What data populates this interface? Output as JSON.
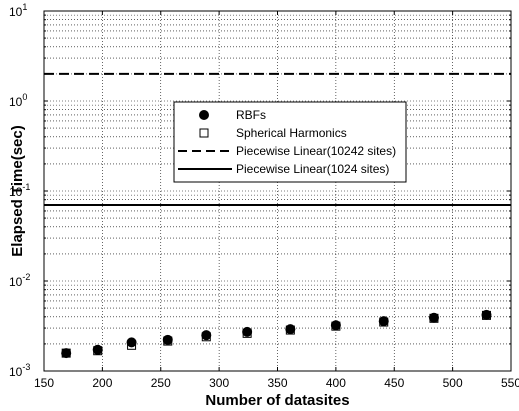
{
  "chart_data": {
    "type": "scatter",
    "title": "",
    "xlabel": "Number of datasites",
    "ylabel": "Elapsed Time(sec)",
    "xlim": [
      150,
      550
    ],
    "ylim": [
      0.001,
      10
    ],
    "yscale": "log",
    "grid": true,
    "legend_position": "center",
    "xticks": [
      "150",
      "200",
      "250",
      "300",
      "350",
      "400",
      "450",
      "500",
      "550"
    ],
    "yticks": [
      {
        "base": "10",
        "exp": "-3"
      },
      {
        "base": "10",
        "exp": "-2"
      },
      {
        "base": "10",
        "exp": "-1"
      },
      {
        "base": "10",
        "exp": "0"
      },
      {
        "base": "10",
        "exp": "1"
      }
    ],
    "series": [
      {
        "name": "RBFs",
        "marker": "filled-circle",
        "x": [
          169,
          196,
          225,
          256,
          289,
          324,
          361,
          400,
          441,
          484,
          529
        ],
        "y": [
          0.00158,
          0.00172,
          0.00208,
          0.00222,
          0.0025,
          0.00272,
          0.00292,
          0.00322,
          0.00358,
          0.0039,
          0.0042
        ]
      },
      {
        "name": "Spherical Harmonics",
        "marker": "open-square",
        "x": [
          169,
          196,
          225,
          256,
          289,
          324,
          361,
          400,
          441,
          484,
          529
        ],
        "y": [
          0.00158,
          0.00168,
          0.00193,
          0.00215,
          0.0024,
          0.00262,
          0.00285,
          0.00315,
          0.0035,
          0.00385,
          0.00415
        ]
      },
      {
        "name": "Piecewise Linear(10242 sites)",
        "line": "dashed",
        "y": 2.0
      },
      {
        "name": "Piecewise Linear(1024 sites)",
        "line": "solid",
        "y": 0.07
      }
    ]
  }
}
